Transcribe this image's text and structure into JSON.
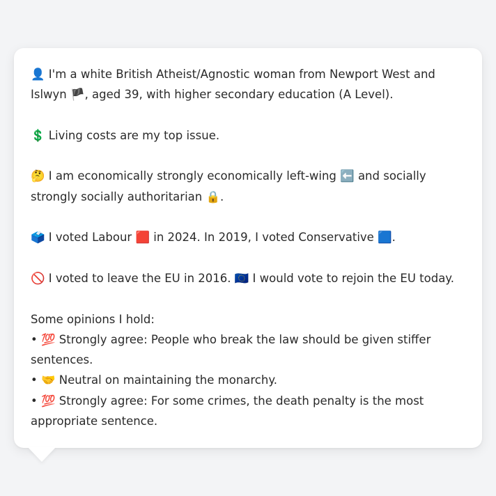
{
  "profile": {
    "intro": {
      "icon": "👤",
      "text_a": " I'm a white British Atheist/Agnostic woman from Newport West and Islwyn ",
      "flag": "🏴",
      "text_b": ", aged 39, with higher secondary education (A Level)."
    },
    "top_issue": {
      "icon": "💲",
      "text": " Living costs are my top issue."
    },
    "politics": {
      "icon": "🤔",
      "text_a": " I am economically strongly economically left-wing ",
      "econ_icon": "⬅️",
      "text_b": " and socially strongly socially authoritarian ",
      "social_icon": "🔒",
      "text_c": "."
    },
    "votes": {
      "icon": "🗳️",
      "text_a": " I voted Labour ",
      "labour_icon": "🟥",
      "text_b": " in 2024. In 2019, I voted Conservative ",
      "conservative_icon": "🟦",
      "text_c": "."
    },
    "eu": {
      "icon": "🚫",
      "text_a": " I voted to leave the EU in 2016. ",
      "eu_icon": "🇪🇺",
      "text_b": " I would vote to rejoin the EU today."
    },
    "opinions": {
      "heading": "Some opinions I hold:",
      "items": [
        {
          "bullet": "• ",
          "icon": "💯",
          "text": " Strongly agree: People who break the law should be given stiffer sentences."
        },
        {
          "bullet": "• ",
          "icon": "🤝",
          "text": " Neutral on maintaining the monarchy."
        },
        {
          "bullet": "• ",
          "icon": "💯",
          "text": " Strongly agree: For some crimes, the death penalty is the most appropriate sentence."
        }
      ]
    }
  }
}
